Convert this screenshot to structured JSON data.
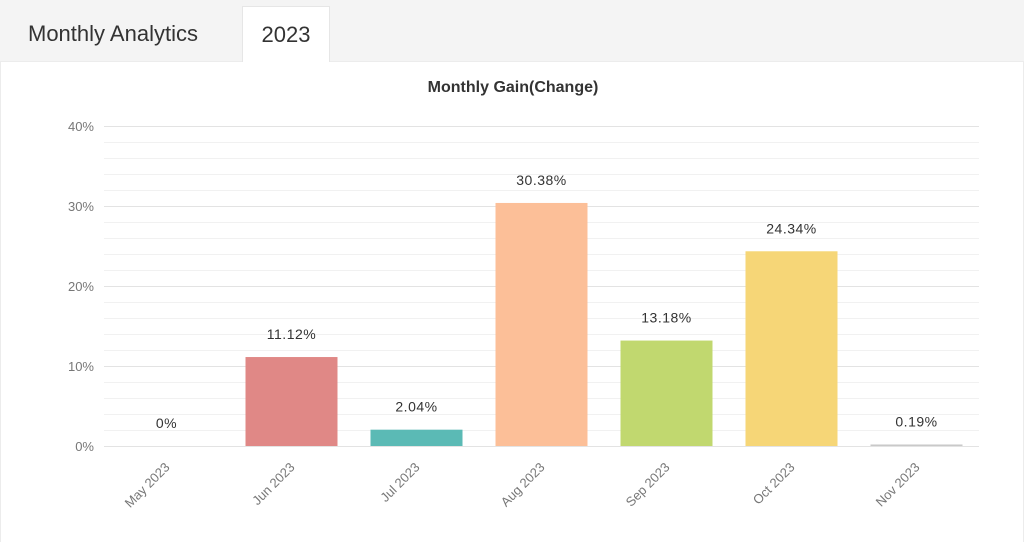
{
  "tabs": {
    "main_label": "Monthly Analytics",
    "year_label": "2023"
  },
  "chart_data": {
    "type": "bar",
    "title": "Monthly Gain(Change)",
    "xlabel": "",
    "ylabel": "",
    "ylim": [
      0,
      40
    ],
    "yticks": [
      0,
      10,
      20,
      30,
      40
    ],
    "ytick_labels": [
      "0%",
      "10%",
      "20%",
      "30%",
      "40%"
    ],
    "grid": true,
    "categories": [
      "May 2023",
      "Jun 2023",
      "Jul 2023",
      "Aug 2023",
      "Sep 2023",
      "Oct 2023",
      "Nov 2023"
    ],
    "values": [
      0,
      11.12,
      2.04,
      30.38,
      13.18,
      24.34,
      0.19
    ],
    "data_labels": [
      "0%",
      "11.12%",
      "2.04%",
      "30.38%",
      "13.18%",
      "24.34%",
      "0.19%"
    ],
    "colors": [
      "#b0b0b0",
      "#e08886",
      "#5bbab5",
      "#fcbf98",
      "#c1d86f",
      "#f6d677",
      "#c9c9c9"
    ]
  }
}
